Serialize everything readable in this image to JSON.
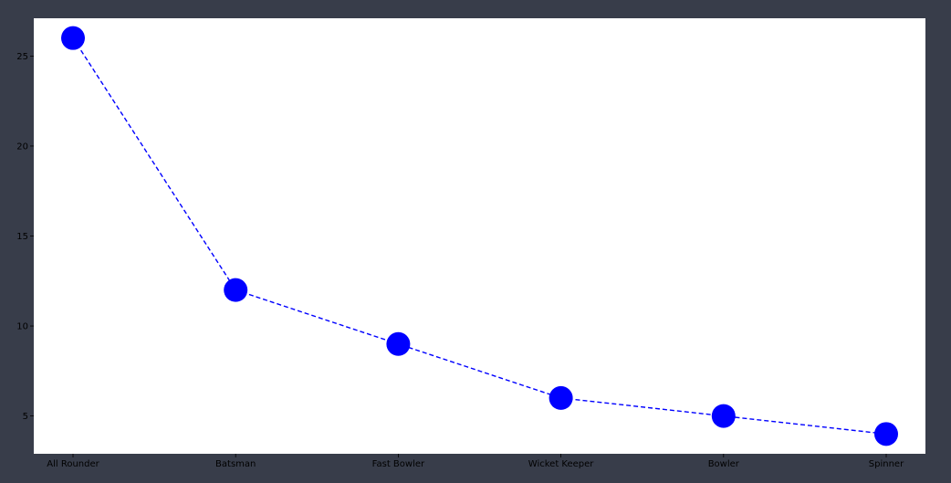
{
  "colors": {
    "background": "#383d4a",
    "plot_area": "#ffffff",
    "line": "#0000ff",
    "marker": "#0000ff",
    "text": "#000000"
  },
  "chart_data": {
    "type": "line",
    "categories": [
      "All Rounder",
      "Batsman",
      "Fast Bowler",
      "Wicket Keeper",
      "Bowler",
      "Spinner"
    ],
    "series": [
      {
        "values": [
          26,
          12,
          9,
          6,
          5,
          4
        ]
      }
    ],
    "line_style": "dashed",
    "marker": "large-circle",
    "title": "",
    "xlabel": "",
    "ylabel": "",
    "yticks": [
      5,
      10,
      15,
      20,
      25
    ],
    "ylim": [
      2.9,
      27.1
    ],
    "grid": false,
    "legend": "none"
  }
}
